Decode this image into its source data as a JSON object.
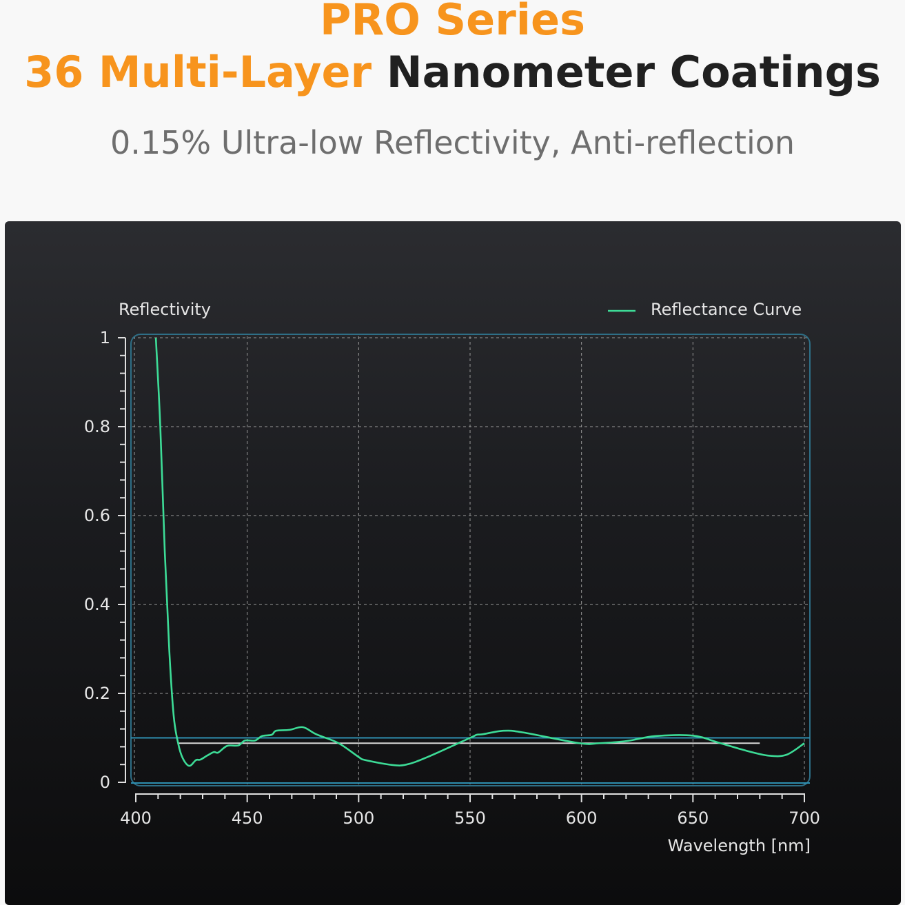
{
  "header": {
    "line1": "PRO Series",
    "line2_accent": "36 Multi-Layer",
    "line2_rest": "Nanometer Coatings",
    "subtitle": "0.15% Ultra-low Reflectivity, Anti-reflection"
  },
  "colors": {
    "accent": "#f7941d",
    "curve": "#3ddc97",
    "frame": "#2e8fb0",
    "ref_line_white": "#d8d8d8"
  },
  "chart_data": {
    "type": "line",
    "ylabel": "Reflectivity",
    "xlabel": "Wavelength [nm]",
    "xlim": [
      400,
      700
    ],
    "ylim": [
      0,
      1
    ],
    "x_ticks": [
      "400",
      "450",
      "500",
      "550",
      "600",
      "650",
      "700"
    ],
    "y_ticks": [
      "0",
      "0.2",
      "0.4",
      "0.6",
      "0.8",
      "1"
    ],
    "grid": true,
    "legend": "top-right",
    "series": [
      {
        "name": "Reflectance Curve",
        "x": [
          409,
          411,
          413,
          415,
          417,
          419,
          421,
          424,
          427,
          429,
          432,
          435,
          437,
          441,
          446,
          449,
          453.5,
          456.6,
          461,
          463,
          469,
          475,
          481,
          491,
          500,
          503,
          515,
          521.5,
          531,
          550,
          553,
          555.6,
          565,
          574,
          599,
          608,
          620.5,
          633,
          650,
          661,
          674,
          684,
          692,
          700
        ],
        "y": [
          1.0,
          0.8,
          0.52,
          0.3,
          0.15,
          0.088,
          0.055,
          0.037,
          0.05,
          0.051,
          0.06,
          0.068,
          0.067,
          0.082,
          0.083,
          0.094,
          0.094,
          0.104,
          0.107,
          0.116,
          0.118,
          0.124,
          0.108,
          0.088,
          0.057,
          0.05,
          0.039,
          0.04,
          0.057,
          0.1,
          0.107,
          0.108,
          0.116,
          0.112,
          0.088,
          0.088,
          0.093,
          0.104,
          0.105,
          0.09,
          0.071,
          0.06,
          0.062,
          0.088
        ]
      }
    ],
    "reference_lines": [
      {
        "y": 0.1,
        "x_range": [
          400,
          700
        ],
        "color": "#2e8fb0"
      },
      {
        "y": 0.088,
        "x_range": [
          419,
          680
        ],
        "color": "#d8d8d8"
      }
    ]
  }
}
